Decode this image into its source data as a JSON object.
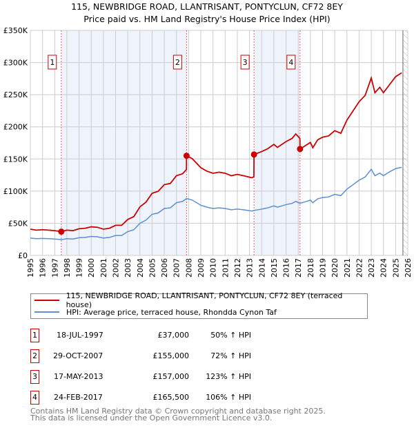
{
  "title": "115, NEWBRIDGE ROAD, LLANTRISANT, PONTYCLUN, CF72 8EY",
  "subtitle": "Price paid vs. HM Land Registry's House Price Index (HPI)",
  "chart_data": {
    "type": "line",
    "xlim": [
      1995,
      2026
    ],
    "ylim": [
      0,
      350000
    ],
    "yticks": [
      {
        "v": 0,
        "label": "£0"
      },
      {
        "v": 50000,
        "label": "£50K"
      },
      {
        "v": 100000,
        "label": "£100K"
      },
      {
        "v": 150000,
        "label": "£150K"
      },
      {
        "v": 200000,
        "label": "£200K"
      },
      {
        "v": 250000,
        "label": "£250K"
      },
      {
        "v": 300000,
        "label": "£300K"
      },
      {
        "v": 350000,
        "label": "£350K"
      }
    ],
    "xticks": [
      "1995",
      "1996",
      "1997",
      "1998",
      "1999",
      "2000",
      "2001",
      "2002",
      "2003",
      "2004",
      "2005",
      "2006",
      "2007",
      "2008",
      "2009",
      "2010",
      "2011",
      "2012",
      "2013",
      "2014",
      "2015",
      "2016",
      "2017",
      "2018",
      "2019",
      "2020",
      "2021",
      "2022",
      "2023",
      "2024",
      "2025",
      "2026"
    ],
    "grid": true,
    "colors": {
      "property": "#cc0000",
      "hpi": "#5b8fd0",
      "shade": "#eef3fc",
      "marker_line": "#e06060"
    },
    "series": [
      {
        "name": "115, NEWBRIDGE ROAD, LLANTRISANT, PONTYCLUN, CF72 8EY (terraced house)",
        "points": [
          [
            1995,
            40.8
          ],
          [
            1995.5,
            39.3
          ],
          [
            1996,
            40
          ],
          [
            1996.5,
            39.3
          ],
          [
            1997,
            38.5
          ],
          [
            1997.54,
            37
          ],
          [
            1998,
            39.3
          ],
          [
            1998.5,
            38.5
          ],
          [
            1999,
            41.5
          ],
          [
            1999.5,
            42.3
          ],
          [
            2000,
            44.5
          ],
          [
            2000.5,
            43.8
          ],
          [
            2001,
            40.8
          ],
          [
            2001.5,
            42.3
          ],
          [
            2002,
            46.8
          ],
          [
            2002.5,
            46.8
          ],
          [
            2003,
            55.9
          ],
          [
            2003.5,
            60.4
          ],
          [
            2004,
            75.5
          ],
          [
            2004.5,
            83
          ],
          [
            2005,
            96.6
          ],
          [
            2005.5,
            99.7
          ],
          [
            2006,
            110
          ],
          [
            2006.5,
            112
          ],
          [
            2007,
            124
          ],
          [
            2007.5,
            127
          ],
          [
            2007.82,
            133.6
          ],
          [
            2007.83,
            155
          ],
          [
            2008.3,
            150.5
          ],
          [
            2009,
            136.5
          ],
          [
            2009.5,
            131
          ],
          [
            2010,
            127.8
          ],
          [
            2010.5,
            129.5
          ],
          [
            2011,
            127.8
          ],
          [
            2011.5,
            124
          ],
          [
            2012,
            126
          ],
          [
            2012.5,
            124
          ],
          [
            2013.2,
            120.8
          ],
          [
            2013.36,
            122.5
          ],
          [
            2013.37,
            157
          ],
          [
            2014,
            161.5
          ],
          [
            2014.5,
            166
          ],
          [
            2015,
            172.7
          ],
          [
            2015.3,
            168
          ],
          [
            2016,
            177
          ],
          [
            2016.5,
            182
          ],
          [
            2016.8,
            189
          ],
          [
            2017.14,
            182
          ],
          [
            2017.15,
            165.5
          ],
          [
            2017.5,
            169.6
          ],
          [
            2018,
            175.7
          ],
          [
            2018.2,
            167.5
          ],
          [
            2018.6,
            179.8
          ],
          [
            2019,
            183.9
          ],
          [
            2019.5,
            185.9
          ],
          [
            2020,
            194
          ],
          [
            2020.5,
            190
          ],
          [
            2021,
            210.4
          ],
          [
            2021.5,
            224.7
          ],
          [
            2022,
            239
          ],
          [
            2022.5,
            249
          ],
          [
            2023,
            276
          ],
          [
            2023.3,
            253
          ],
          [
            2023.7,
            261.5
          ],
          [
            2024,
            253
          ],
          [
            2024.5,
            265.6
          ],
          [
            2025,
            278
          ],
          [
            2025.5,
            284
          ]
        ]
      },
      {
        "name": "HPI: Average price, terraced house, Rhondda Cynon Taf",
        "points": [
          [
            1995,
            27
          ],
          [
            1995.5,
            26
          ],
          [
            1996,
            26.5
          ],
          [
            1996.5,
            26
          ],
          [
            1997,
            25.5
          ],
          [
            1997.54,
            24.5
          ],
          [
            1998,
            26
          ],
          [
            1998.5,
            25.5
          ],
          [
            1999,
            27.5
          ],
          [
            1999.5,
            28
          ],
          [
            2000,
            29.5
          ],
          [
            2000.5,
            29
          ],
          [
            2001,
            27
          ],
          [
            2001.5,
            28
          ],
          [
            2002,
            31
          ],
          [
            2002.5,
            31
          ],
          [
            2003,
            37
          ],
          [
            2003.5,
            40
          ],
          [
            2004,
            50
          ],
          [
            2004.5,
            55
          ],
          [
            2005,
            64
          ],
          [
            2005.5,
            66
          ],
          [
            2006,
            73
          ],
          [
            2006.5,
            74
          ],
          [
            2007,
            82
          ],
          [
            2007.5,
            84
          ],
          [
            2007.83,
            88.5
          ],
          [
            2008.3,
            86
          ],
          [
            2009,
            78
          ],
          [
            2009.5,
            75
          ],
          [
            2010,
            73
          ],
          [
            2010.5,
            74
          ],
          [
            2011,
            73
          ],
          [
            2011.5,
            71
          ],
          [
            2012,
            72
          ],
          [
            2012.5,
            71
          ],
          [
            2013.2,
            69
          ],
          [
            2013.37,
            70
          ],
          [
            2014,
            72
          ],
          [
            2014.5,
            74
          ],
          [
            2015,
            77
          ],
          [
            2015.3,
            75
          ],
          [
            2016,
            79
          ],
          [
            2016.5,
            81
          ],
          [
            2016.8,
            84
          ],
          [
            2017.15,
            81
          ],
          [
            2017.5,
            83
          ],
          [
            2018,
            86
          ],
          [
            2018.2,
            82
          ],
          [
            2018.6,
            88
          ],
          [
            2019,
            90
          ],
          [
            2019.5,
            91
          ],
          [
            2020,
            95
          ],
          [
            2020.5,
            93
          ],
          [
            2021,
            103
          ],
          [
            2021.5,
            110
          ],
          [
            2022,
            117
          ],
          [
            2022.5,
            122
          ],
          [
            2023,
            134
          ],
          [
            2023.3,
            124
          ],
          [
            2023.7,
            128
          ],
          [
            2024,
            124
          ],
          [
            2024.5,
            130
          ],
          [
            2025,
            135
          ],
          [
            2025.5,
            137
          ]
        ]
      }
    ],
    "value_unit": "thousand GBP",
    "sales": [
      {
        "id": "1",
        "x": 1997.54,
        "value": 37
      },
      {
        "id": "2",
        "x": 2007.83,
        "value": 155
      },
      {
        "id": "3",
        "x": 2013.37,
        "value": 157
      },
      {
        "id": "4",
        "x": 2017.15,
        "value": 165.5
      }
    ],
    "shaded_ranges": [
      [
        1997.54,
        2007.83
      ],
      [
        2013.37,
        2017.15
      ]
    ],
    "forecast_hatch_from": 2025.6
  },
  "legend": {
    "property": "115, NEWBRIDGE ROAD, LLANTRISANT, PONTYCLUN, CF72 8EY (terraced house)",
    "hpi": "HPI: Average price, terraced house, Rhondda Cynon Taf"
  },
  "sales_table": [
    {
      "num": "1",
      "date": "18-JUL-1997",
      "price": "£37,000",
      "hpi": "50% ↑ HPI"
    },
    {
      "num": "2",
      "date": "29-OCT-2007",
      "price": "£155,000",
      "hpi": "72% ↑ HPI"
    },
    {
      "num": "3",
      "date": "17-MAY-2013",
      "price": "£157,000",
      "hpi": "123% ↑ HPI"
    },
    {
      "num": "4",
      "date": "24-FEB-2017",
      "price": "£165,500",
      "hpi": "106% ↑ HPI"
    }
  ],
  "footer": {
    "line1": "Contains HM Land Registry data © Crown copyright and database right 2025.",
    "line2": "This data is licensed under the Open Government Licence v3.0."
  }
}
